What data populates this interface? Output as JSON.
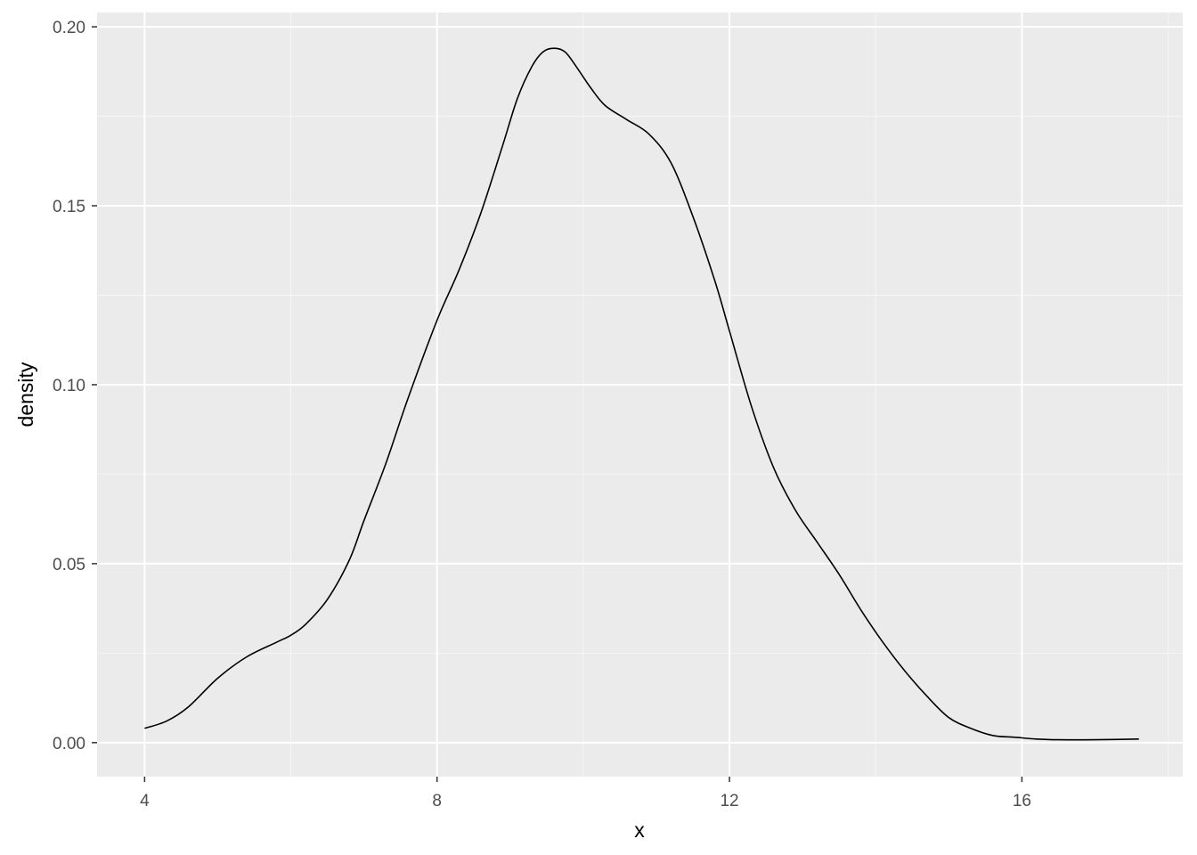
{
  "chart_data": {
    "type": "line",
    "subtype": "density",
    "title": "",
    "xlabel": "x",
    "ylabel": "density",
    "xlim": [
      3.35,
      18.2
    ],
    "ylim": [
      -0.0095,
      0.204
    ],
    "x_ticks": [
      4,
      8,
      12,
      16
    ],
    "x_tick_labels": [
      "4",
      "8",
      "12",
      "16"
    ],
    "x_minor_ticks": [
      6,
      10,
      14,
      18
    ],
    "y_ticks": [
      0,
      0.05,
      0.1,
      0.15,
      0.2
    ],
    "y_tick_labels": [
      "0.00",
      "0.05",
      "0.10",
      "0.15",
      "0.20"
    ],
    "y_minor_ticks": [
      0.025,
      0.075,
      0.125,
      0.175
    ],
    "grid": true,
    "legend": "none",
    "colors": {
      "panel_background": "#ebebeb",
      "grid_line": "#ffffff",
      "series_line": "#000000",
      "tick_mark": "#333333"
    },
    "series": [
      {
        "x": [
          4.0,
          4.3,
          4.6,
          5.0,
          5.4,
          5.8,
          6.0,
          6.2,
          6.5,
          6.8,
          7.0,
          7.3,
          7.6,
          8.0,
          8.3,
          8.6,
          8.9,
          9.1,
          9.3,
          9.45,
          9.6,
          9.75,
          9.9,
          10.1,
          10.3,
          10.6,
          10.9,
          11.2,
          11.5,
          11.8,
          12.0,
          12.3,
          12.6,
          12.9,
          13.2,
          13.5,
          13.8,
          14.1,
          14.4,
          14.7,
          15.0,
          15.3,
          15.6,
          15.9,
          16.2,
          16.5,
          17.0,
          17.6
        ],
        "y": [
          0.004,
          0.006,
          0.01,
          0.018,
          0.024,
          0.028,
          0.03,
          0.033,
          0.04,
          0.051,
          0.062,
          0.078,
          0.096,
          0.118,
          0.132,
          0.148,
          0.167,
          0.18,
          0.189,
          0.193,
          0.194,
          0.193,
          0.189,
          0.183,
          0.178,
          0.174,
          0.17,
          0.162,
          0.147,
          0.129,
          0.115,
          0.094,
          0.077,
          0.065,
          0.056,
          0.047,
          0.037,
          0.028,
          0.02,
          0.013,
          0.007,
          0.004,
          0.002,
          0.0015,
          0.001,
          0.0008,
          0.0008,
          0.001
        ]
      }
    ]
  }
}
